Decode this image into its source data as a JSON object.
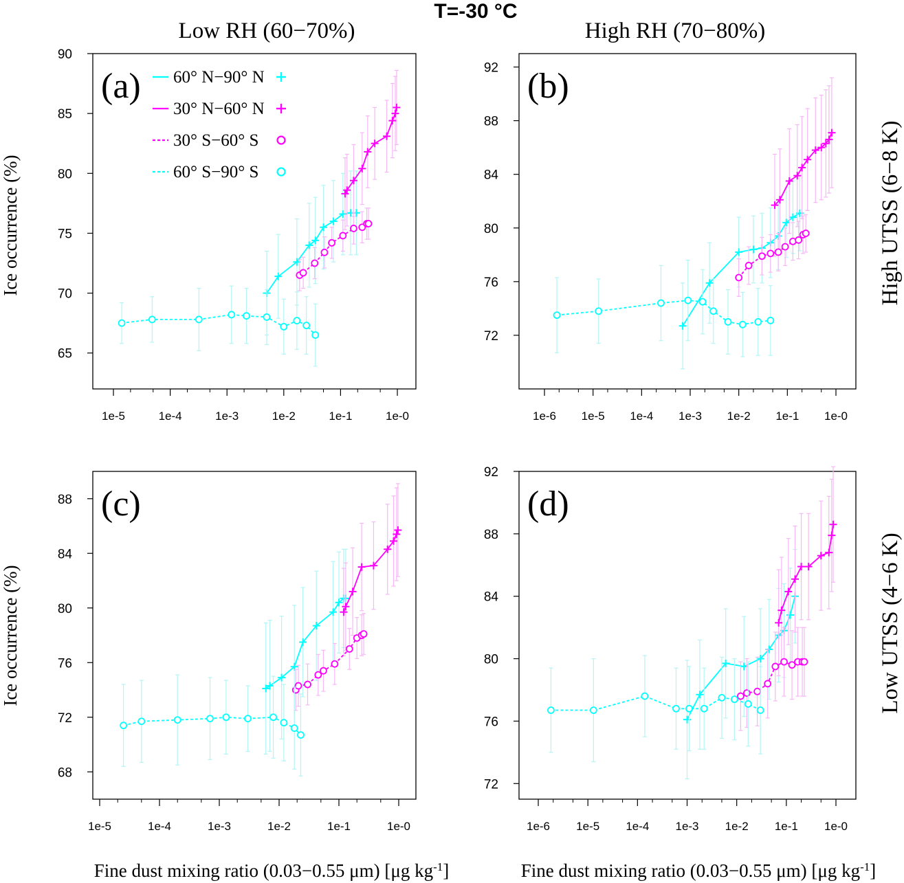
{
  "figure": {
    "title": "T=-30 °C",
    "col_titles": [
      "Low RH (60−70%)",
      "High RH (70−80%)"
    ],
    "row_titles": [
      "High UTSS (6−8 K)",
      "Low UTSS (4−6 K)"
    ],
    "ylabel": "Ice occurrence (%)",
    "xlabel": "Fine dust mixing ratio (0.03−0.55 μm) [μg kg",
    "xlabel_sup": "-1",
    "xlabel_end": "]"
  },
  "legend": [
    {
      "label": "60° N−90° N",
      "color": "#00ffff",
      "dash": "solid",
      "marker": "plus"
    },
    {
      "label": "30° N−60° N",
      "color": "#ff00ff",
      "dash": "solid",
      "marker": "plus"
    },
    {
      "label": "30° S−60° S",
      "color": "#ff00ff",
      "dash": "dashed",
      "marker": "circle"
    },
    {
      "label": "60° S−90° S",
      "color": "#00ffff",
      "dash": "dashed",
      "marker": "circle"
    }
  ],
  "colors": {
    "cyan": "#00ffff",
    "magenta": "#ff00ff",
    "cyan_err": "#b3f5f5",
    "magenta_err": "#f5b8f5"
  },
  "chart_data": [
    {
      "panel": "(a)",
      "type": "line",
      "xscale": "log",
      "xlim": [
        "7e-6",
        "1.6e0"
      ],
      "ylim": [
        62,
        90
      ],
      "xticks": [
        {
          "v": 1e-05,
          "l": "1e-5"
        },
        {
          "v": 0.0001,
          "l": "1e-4"
        },
        {
          "v": 0.001,
          "l": "1e-3"
        },
        {
          "v": 0.01,
          "l": "1e-2"
        },
        {
          "v": 0.1,
          "l": "1e-1"
        },
        {
          "v": 1,
          "l": "1e-0"
        }
      ],
      "yticks": [
        65,
        70,
        75,
        80,
        85,
        90
      ],
      "series": [
        {
          "name": "60° N−90° N",
          "color": "#00ffff",
          "dash": "solid",
          "marker": "plus",
          "x": [
            0.005,
            0.008,
            0.017,
            0.028,
            0.036,
            0.05,
            0.075,
            0.11,
            0.15,
            0.19
          ],
          "y": [
            70.0,
            71.4,
            72.6,
            74.0,
            74.4,
            75.5,
            76.0,
            76.6,
            76.7,
            76.7
          ],
          "err": [
            3.5,
            3.5,
            3.6,
            3.5,
            3.6,
            3.5,
            3.4,
            3.4,
            3.5,
            3.5
          ]
        },
        {
          "name": "30° N−60° N",
          "color": "#ff00ff",
          "dash": "solid",
          "marker": "plus",
          "x": [
            0.12,
            0.13,
            0.17,
            0.24,
            0.3,
            0.4,
            0.65,
            0.82,
            0.92,
            0.97
          ],
          "y": [
            78.3,
            78.6,
            79.4,
            80.4,
            81.8,
            82.5,
            83.1,
            84.4,
            85.0,
            85.5
          ],
          "err": [
            3.0,
            3.0,
            3.0,
            3.0,
            3.0,
            3.0,
            3.0,
            3.1,
            3.1,
            3.1
          ]
        },
        {
          "name": "30° S−60° S",
          "color": "#ff00ff",
          "dash": "dashed",
          "marker": "circle",
          "x": [
            0.019,
            0.022,
            0.035,
            0.052,
            0.07,
            0.11,
            0.17,
            0.24,
            0.29,
            0.31
          ],
          "y": [
            71.5,
            71.7,
            72.5,
            73.4,
            74.2,
            74.8,
            75.4,
            75.5,
            75.8,
            75.8
          ],
          "err": [
            1.3,
            1.3,
            1.3,
            1.3,
            1.3,
            1.3,
            1.3,
            1.3,
            1.3,
            1.3
          ]
        },
        {
          "name": "60° S−90° S",
          "color": "#00ffff",
          "dash": "dashed",
          "marker": "circle",
          "x": [
            1.4e-05,
            4.8e-05,
            0.00032,
            0.0012,
            0.0022,
            0.005,
            0.01,
            0.017,
            0.025,
            0.036
          ],
          "y": [
            67.5,
            67.8,
            67.8,
            68.2,
            68.1,
            68.0,
            67.2,
            67.7,
            67.3,
            66.5
          ],
          "err": [
            1.7,
            1.9,
            2.6,
            2.4,
            2.3,
            2.3,
            2.3,
            2.4,
            2.4,
            2.6
          ]
        }
      ]
    },
    {
      "panel": "(b)",
      "type": "line",
      "xscale": "log",
      "xlim": [
        "6e-7",
        "1.6e0"
      ],
      "ylim": [
        68,
        93
      ],
      "xticks": [
        {
          "v": 1e-06,
          "l": "1e-6"
        },
        {
          "v": 1e-05,
          "l": "1e-5"
        },
        {
          "v": 0.0001,
          "l": "1e-4"
        },
        {
          "v": 0.001,
          "l": "1e-3"
        },
        {
          "v": 0.01,
          "l": "1e-2"
        },
        {
          "v": 0.1,
          "l": "1e-1"
        },
        {
          "v": 1,
          "l": "1e-0"
        }
      ],
      "yticks": [
        72,
        76,
        80,
        84,
        88,
        92
      ],
      "series": [
        {
          "name": "60° N−90° N",
          "color": "#00ffff",
          "dash": "solid",
          "marker": "plus",
          "x": [
            0.0007,
            0.0025,
            0.01,
            0.02,
            0.03,
            0.045,
            0.065,
            0.095,
            0.13,
            0.18
          ],
          "y": [
            72.7,
            75.9,
            78.2,
            78.4,
            78.5,
            78.9,
            79.4,
            80.4,
            80.8,
            81.1
          ],
          "err": [
            3.2,
            3.0,
            2.6,
            2.5,
            2.6,
            2.6,
            2.5,
            2.6,
            2.7,
            2.8
          ]
        },
        {
          "name": "30° N−60° N",
          "color": "#ff00ff",
          "dash": "solid",
          "marker": "plus",
          "x": [
            0.055,
            0.07,
            0.11,
            0.16,
            0.2,
            0.26,
            0.38,
            0.5,
            0.62,
            0.72,
            0.82
          ],
          "y": [
            81.7,
            82.1,
            83.5,
            83.9,
            84.5,
            85.1,
            85.8,
            86.0,
            86.3,
            86.6,
            87.1
          ],
          "err": [
            3.8,
            3.8,
            3.9,
            3.8,
            3.8,
            3.8,
            3.9,
            3.9,
            4.0,
            4.0,
            4.1
          ]
        },
        {
          "name": "30° S−60° S",
          "color": "#ff00ff",
          "dash": "dashed",
          "marker": "circle",
          "x": [
            0.01,
            0.016,
            0.03,
            0.045,
            0.065,
            0.09,
            0.13,
            0.17,
            0.21,
            0.24
          ],
          "y": [
            76.3,
            77.2,
            77.9,
            78.1,
            78.2,
            78.6,
            79.0,
            79.1,
            79.5,
            79.6
          ],
          "err": [
            1.4,
            1.4,
            1.4,
            1.4,
            1.4,
            1.4,
            1.4,
            1.4,
            1.4,
            1.4
          ]
        },
        {
          "name": "60° S−90° S",
          "color": "#00ffff",
          "dash": "dashed",
          "marker": "circle",
          "x": [
            1.8e-06,
            1.3e-05,
            0.00025,
            0.0009,
            0.0018,
            0.003,
            0.006,
            0.012,
            0.025,
            0.045
          ],
          "y": [
            73.5,
            73.8,
            74.4,
            74.6,
            74.5,
            73.8,
            73.0,
            72.8,
            73.0,
            73.1
          ],
          "err": [
            2.8,
            2.4,
            2.8,
            3.0,
            2.4,
            2.4,
            2.4,
            2.4,
            2.5,
            2.6
          ]
        }
      ]
    },
    {
      "panel": "(c)",
      "type": "line",
      "xscale": "log",
      "xlim": [
        "7e-6",
        "1.6e0"
      ],
      "ylim": [
        66,
        90
      ],
      "xticks": [
        {
          "v": 1e-05,
          "l": "1e-5"
        },
        {
          "v": 0.0001,
          "l": "1e-4"
        },
        {
          "v": 0.001,
          "l": "1e-3"
        },
        {
          "v": 0.01,
          "l": "1e-2"
        },
        {
          "v": 0.1,
          "l": "1e-1"
        },
        {
          "v": 1,
          "l": "1e-0"
        }
      ],
      "yticks": [
        68,
        72,
        76,
        80,
        84,
        88
      ],
      "series": [
        {
          "name": "60° N−90° N",
          "color": "#00ffff",
          "dash": "solid",
          "marker": "plus",
          "x": [
            0.006,
            0.007,
            0.011,
            0.018,
            0.025,
            0.042,
            0.08,
            0.1,
            0.12,
            0.13
          ],
          "y": [
            74.1,
            74.3,
            74.9,
            75.7,
            77.5,
            78.7,
            79.7,
            80.4,
            80.7,
            80.7
          ],
          "err": [
            4.8,
            4.8,
            4.5,
            4.5,
            4.0,
            4.0,
            3.7,
            3.7,
            3.6,
            3.6
          ]
        },
        {
          "name": "30° N−60° N",
          "color": "#ff00ff",
          "dash": "solid",
          "marker": "plus",
          "x": [
            0.12,
            0.13,
            0.17,
            0.24,
            0.38,
            0.65,
            0.82,
            0.92,
            0.97
          ],
          "y": [
            79.7,
            80.1,
            81.2,
            83.0,
            83.1,
            84.3,
            84.9,
            85.4,
            85.7
          ],
          "err": [
            3.2,
            3.2,
            3.2,
            3.2,
            3.2,
            3.3,
            3.3,
            3.4,
            3.4
          ]
        },
        {
          "name": "30° S−60° S",
          "color": "#ff00ff",
          "dash": "dashed",
          "marker": "circle",
          "x": [
            0.019,
            0.021,
            0.03,
            0.045,
            0.055,
            0.085,
            0.15,
            0.2,
            0.24,
            0.26
          ],
          "y": [
            74.0,
            74.3,
            74.4,
            75.1,
            75.4,
            75.9,
            77.0,
            77.8,
            78.0,
            78.1
          ],
          "err": [
            1.5,
            1.5,
            1.5,
            1.5,
            1.5,
            1.5,
            1.5,
            1.5,
            1.5,
            1.5
          ]
        },
        {
          "name": "60° S−90° S",
          "color": "#00ffff",
          "dash": "dashed",
          "marker": "circle",
          "x": [
            2.5e-05,
            5e-05,
            0.0002,
            0.0007,
            0.0013,
            0.003,
            0.008,
            0.012,
            0.018,
            0.023
          ],
          "y": [
            71.4,
            71.7,
            71.8,
            71.9,
            72.0,
            71.9,
            72.0,
            71.6,
            71.2,
            70.7
          ],
          "err": [
            3.0,
            3.0,
            3.3,
            3.0,
            2.7,
            2.4,
            3.0,
            2.8,
            3.0,
            3.0
          ]
        }
      ]
    },
    {
      "panel": "(d)",
      "type": "line",
      "xscale": "log",
      "xlim": [
        "6e-7",
        "1.6e0"
      ],
      "ylim": [
        71,
        92
      ],
      "xticks": [
        {
          "v": 1e-06,
          "l": "1e-6"
        },
        {
          "v": 1e-05,
          "l": "1e-5"
        },
        {
          "v": 0.0001,
          "l": "1e-4"
        },
        {
          "v": 0.001,
          "l": "1e-3"
        },
        {
          "v": 0.01,
          "l": "1e-2"
        },
        {
          "v": 0.1,
          "l": "1e-1"
        },
        {
          "v": 1,
          "l": "1e-0"
        }
      ],
      "yticks": [
        72,
        76,
        80,
        84,
        88,
        92
      ],
      "series": [
        {
          "name": "60° N−90° N",
          "color": "#00ffff",
          "dash": "solid",
          "marker": "plus",
          "x": [
            0.001,
            0.0018,
            0.006,
            0.014,
            0.03,
            0.045,
            0.07,
            0.09,
            0.12,
            0.15
          ],
          "y": [
            76.1,
            77.7,
            79.7,
            79.5,
            80.0,
            80.6,
            81.5,
            81.8,
            82.8,
            84.0
          ],
          "err": [
            3.8,
            3.5,
            3.5,
            3.2,
            3.2,
            3.2,
            3.0,
            3.0,
            3.0,
            3.0
          ]
        },
        {
          "name": "30° N−60° N",
          "color": "#ff00ff",
          "dash": "solid",
          "marker": "plus",
          "x": [
            0.07,
            0.08,
            0.11,
            0.15,
            0.2,
            0.28,
            0.5,
            0.72,
            0.82,
            0.88
          ],
          "y": [
            82.3,
            83.1,
            84.3,
            85.1,
            85.9,
            85.9,
            86.6,
            86.8,
            87.9,
            88.6
          ],
          "err": [
            3.4,
            3.4,
            3.4,
            3.4,
            3.4,
            3.4,
            3.5,
            3.6,
            3.6,
            3.7
          ]
        },
        {
          "name": "30° S−60° S",
          "color": "#ff00ff",
          "dash": "dashed",
          "marker": "circle",
          "x": [
            0.012,
            0.016,
            0.026,
            0.042,
            0.06,
            0.09,
            0.13,
            0.17,
            0.21,
            0.23
          ],
          "y": [
            77.6,
            77.8,
            77.9,
            78.4,
            79.5,
            79.8,
            79.6,
            79.8,
            79.8,
            79.8
          ],
          "err": [
            2.2,
            2.2,
            2.2,
            2.2,
            2.2,
            2.2,
            2.2,
            2.2,
            2.2,
            2.2
          ]
        },
        {
          "name": "60° S−90° S",
          "color": "#00ffff",
          "dash": "dashed",
          "marker": "circle",
          "x": [
            1.8e-06,
            1.3e-05,
            0.00014,
            0.0006,
            0.0011,
            0.0022,
            0.005,
            0.009,
            0.017,
            0.03
          ],
          "y": [
            76.7,
            76.7,
            77.6,
            76.8,
            76.8,
            76.8,
            77.5,
            77.4,
            77.1,
            76.7
          ],
          "err": [
            2.7,
            3.3,
            2.6,
            2.6,
            2.7,
            2.6,
            2.6,
            2.6,
            2.7,
            2.8
          ]
        }
      ]
    }
  ]
}
